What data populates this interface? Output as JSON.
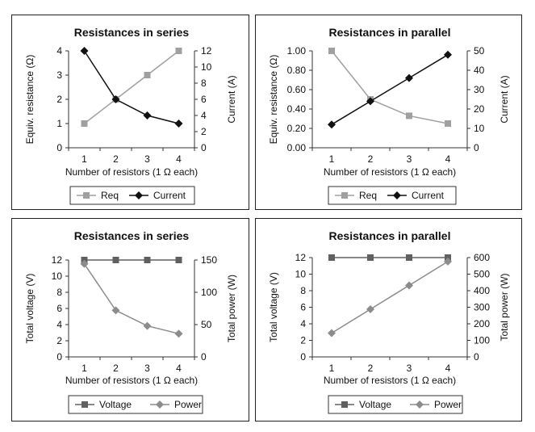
{
  "colors": {
    "req": "#a0a0a0",
    "current": "#111111",
    "voltage": "#606060",
    "power": "#8c8c8c",
    "axis": "#333333"
  },
  "chart_data": [
    {
      "type": "line",
      "title": "Resistances in series",
      "xlabel": "Number of resistors (1 Ω each)",
      "categories": [
        "1",
        "2",
        "3",
        "4"
      ],
      "y_left": {
        "label": "Equiv. resistance (Ω)",
        "range": [
          0,
          4
        ],
        "ticks": [
          "0",
          "1",
          "2",
          "3",
          "4"
        ]
      },
      "y_right": {
        "label": "Current (A)",
        "range": [
          0,
          12
        ],
        "ticks": [
          "0",
          "2",
          "4",
          "6",
          "8",
          "10",
          "12"
        ]
      },
      "series": [
        {
          "name": "Req",
          "axis": "left",
          "marker": "square",
          "color": "#a0a0a0",
          "values": [
            1,
            2,
            3,
            4
          ]
        },
        {
          "name": "Current",
          "axis": "right",
          "marker": "diamond",
          "color": "#111111",
          "values": [
            12,
            6,
            4,
            3
          ]
        }
      ],
      "legend": "bottom",
      "grid": false
    },
    {
      "type": "line",
      "title": "Resistances in parallel",
      "xlabel": "Number of resistors (1 Ω each)",
      "categories": [
        "1",
        "2",
        "3",
        "4"
      ],
      "y_left": {
        "label": "Equiv. resistance (Ω)",
        "range": [
          0,
          1
        ],
        "ticks": [
          "0.00",
          "0.20",
          "0.40",
          "0.60",
          "0.80",
          "1.00"
        ]
      },
      "y_right": {
        "label": "Current (A)",
        "range": [
          0,
          50
        ],
        "ticks": [
          "0",
          "10",
          "20",
          "30",
          "40",
          "50"
        ]
      },
      "series": [
        {
          "name": "Req",
          "axis": "left",
          "marker": "square",
          "color": "#a0a0a0",
          "values": [
            1.0,
            0.5,
            0.33,
            0.25
          ]
        },
        {
          "name": "Current",
          "axis": "right",
          "marker": "diamond",
          "color": "#111111",
          "values": [
            12,
            24,
            36,
            48
          ]
        }
      ],
      "legend": "bottom",
      "grid": false
    },
    {
      "type": "line",
      "title": "Resistances in series",
      "xlabel": "Number of resistors (1 Ω each)",
      "categories": [
        "1",
        "2",
        "3",
        "4"
      ],
      "y_left": {
        "label": "Total voltage (V)",
        "range": [
          0,
          12
        ],
        "ticks": [
          "0",
          "2",
          "4",
          "6",
          "8",
          "10",
          "12"
        ]
      },
      "y_right": {
        "label": "Total power (W)",
        "range": [
          0,
          150
        ],
        "ticks": [
          "0",
          "50",
          "100",
          "150"
        ]
      },
      "series": [
        {
          "name": "Voltage",
          "axis": "left",
          "marker": "square",
          "color": "#606060",
          "values": [
            12,
            12,
            12,
            12
          ]
        },
        {
          "name": "Power",
          "axis": "right",
          "marker": "diamond",
          "color": "#8c8c8c",
          "values": [
            144,
            72,
            48,
            36
          ]
        }
      ],
      "legend": "bottom",
      "grid": false
    },
    {
      "type": "line",
      "title": "Resistances in parallel",
      "xlabel": "Number of resistors (1 Ω each)",
      "categories": [
        "1",
        "2",
        "3",
        "4"
      ],
      "y_left": {
        "label": "Total voltage (V)",
        "range": [
          0,
          12
        ],
        "ticks": [
          "0",
          "2",
          "4",
          "6",
          "8",
          "10",
          "12"
        ]
      },
      "y_right": {
        "label": "Total power (W)",
        "range": [
          0,
          600
        ],
        "ticks": [
          "0",
          "100",
          "200",
          "300",
          "400",
          "500",
          "600"
        ]
      },
      "series": [
        {
          "name": "Voltage",
          "axis": "left",
          "marker": "square",
          "color": "#606060",
          "values": [
            12,
            12,
            12,
            12
          ]
        },
        {
          "name": "Power",
          "axis": "right",
          "marker": "diamond",
          "color": "#8c8c8c",
          "values": [
            144,
            288,
            432,
            576
          ]
        }
      ],
      "legend": "bottom",
      "grid": false
    }
  ]
}
